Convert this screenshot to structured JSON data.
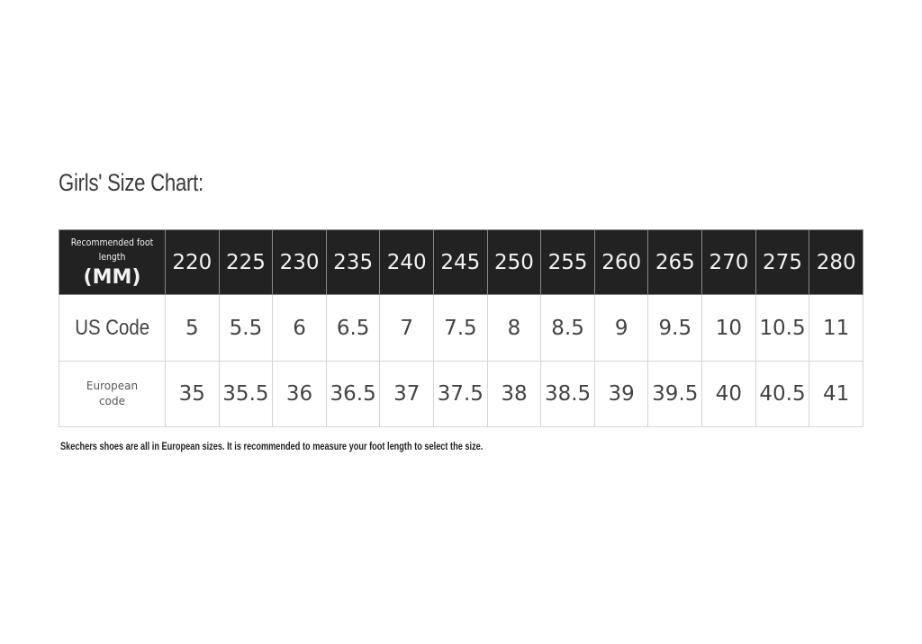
{
  "title": "Girls' Size Chart:",
  "table": {
    "header": {
      "label": "Recommended foot length",
      "unit": "(MM)",
      "values": [
        220,
        225,
        230,
        235,
        240,
        245,
        250,
        255,
        260,
        265,
        270,
        275,
        280
      ]
    },
    "rows": [
      {
        "label": "US Code",
        "values": [
          5,
          5.5,
          6,
          6.5,
          7,
          7.5,
          8,
          8.5,
          9,
          9.5,
          10,
          10.5,
          11
        ]
      },
      {
        "label": "European code",
        "values": [
          35,
          35.5,
          36,
          36.5,
          37,
          37.5,
          38,
          38.5,
          39,
          39.5,
          40,
          40.5,
          41
        ]
      }
    ]
  },
  "note": "Skechers shoes are all in European sizes. It is recommended to measure your foot length to select the size."
}
